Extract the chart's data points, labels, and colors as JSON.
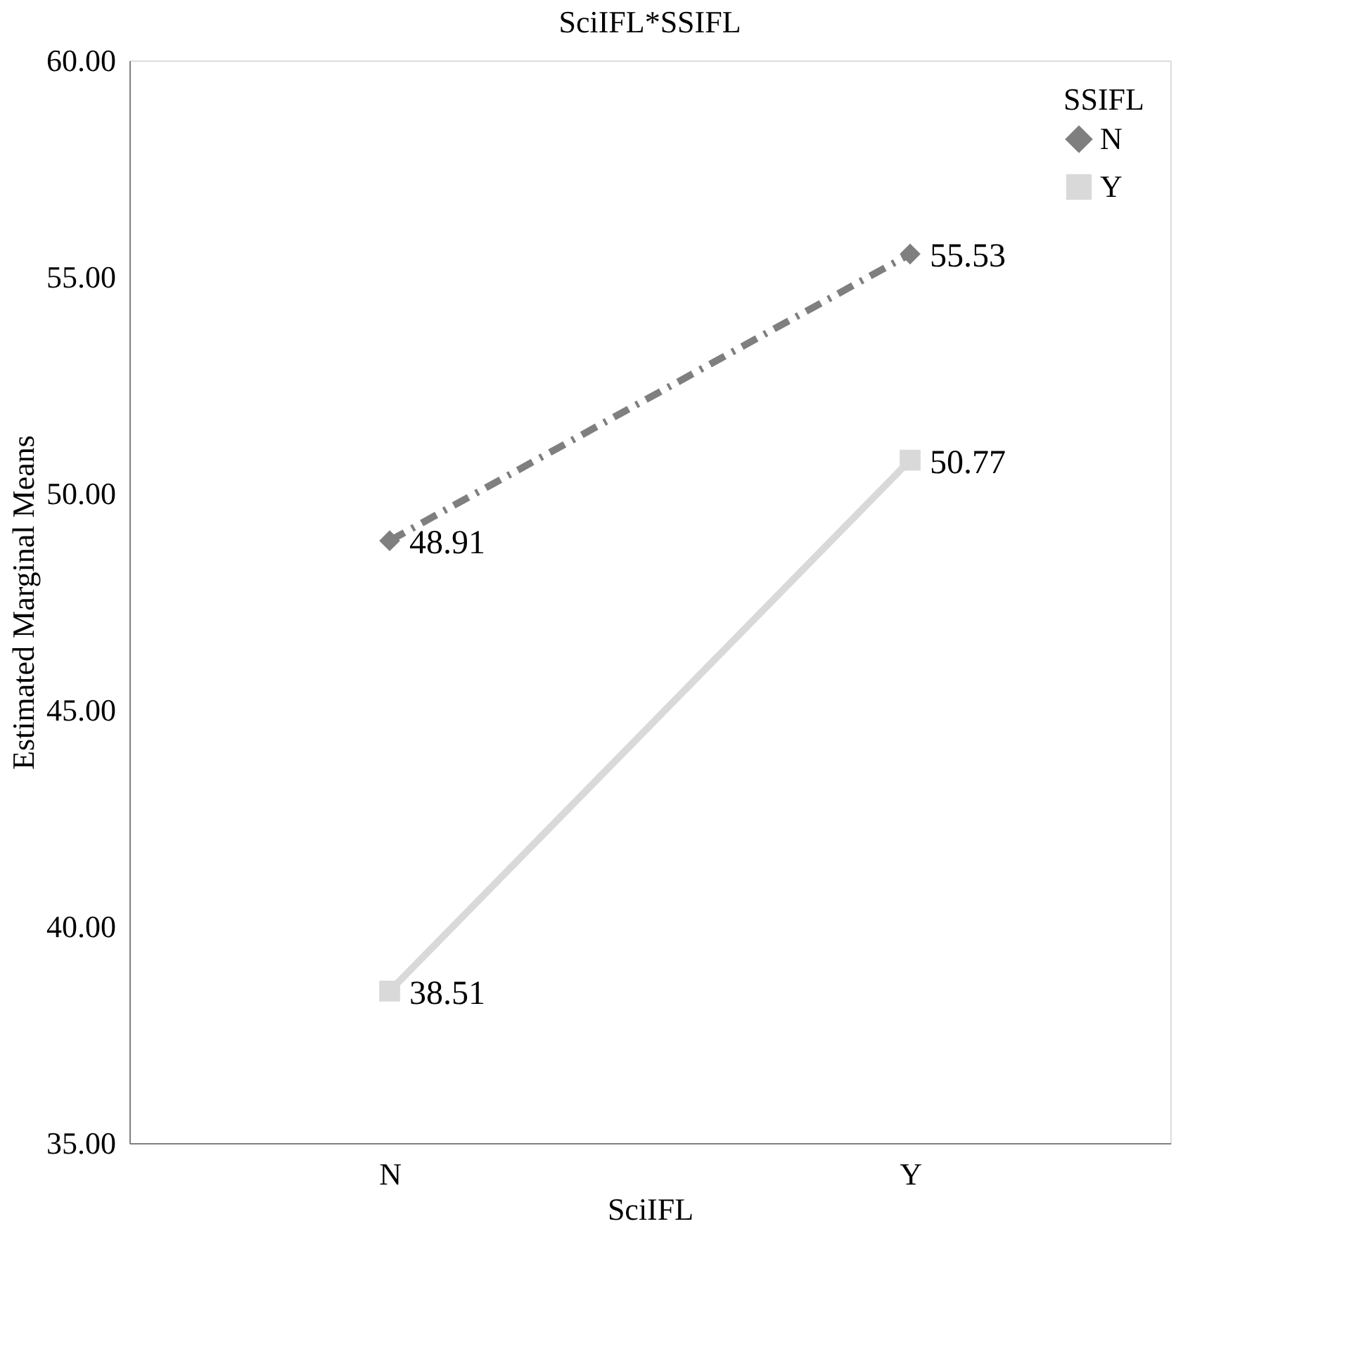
{
  "chart_data": {
    "type": "line",
    "title": "SciIFL*SSIFL",
    "xlabel": "SciIFL",
    "ylabel": "Estimated Marginal Means",
    "legend_title": "SSIFL",
    "categories": [
      "N",
      "Y"
    ],
    "series": [
      {
        "name": "N",
        "color": "#7f7f7f",
        "values": [
          48.91,
          55.53
        ],
        "marker": "diamond",
        "line_style": "dashed"
      },
      {
        "name": "Y",
        "color": "#d9d9d9",
        "values": [
          38.51,
          50.77
        ],
        "marker": "square",
        "line_style": "solid"
      }
    ],
    "ylim": [
      35,
      60
    ],
    "yticks": [
      {
        "value": 35,
        "label": "35.00"
      },
      {
        "value": 40,
        "label": "40.00"
      },
      {
        "value": 45,
        "label": "45.00"
      },
      {
        "value": 50,
        "label": "50.00"
      },
      {
        "value": 55,
        "label": "55.00"
      },
      {
        "value": 60,
        "label": "60.00"
      }
    ],
    "data_labels": true,
    "grid": false,
    "legend": "top right"
  }
}
